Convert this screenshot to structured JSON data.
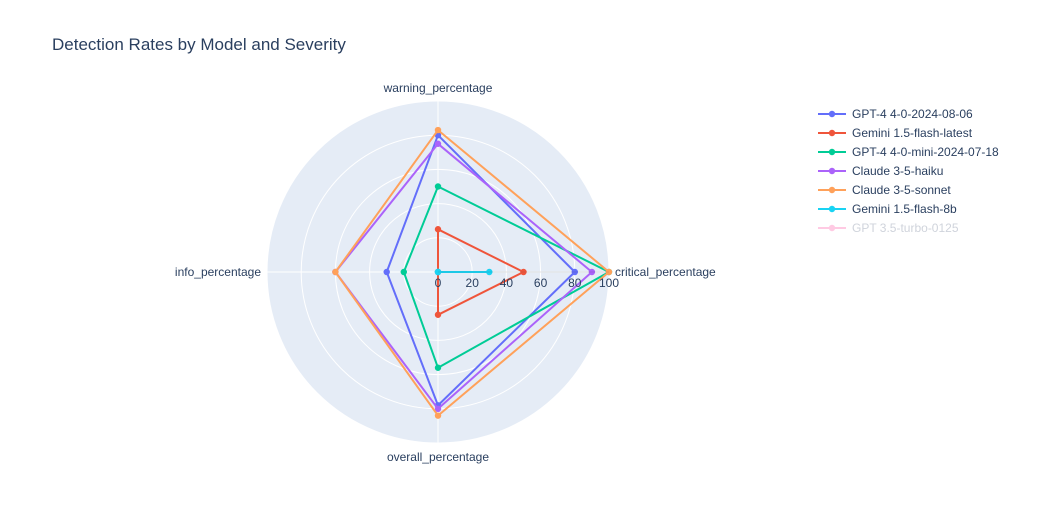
{
  "chart_data": {
    "type": "radar",
    "title": "Detection Rates by Model and Severity",
    "axes": [
      "critical_percentage",
      "warning_percentage",
      "info_percentage",
      "overall_percentage"
    ],
    "radial_range": [
      0,
      100
    ],
    "radial_ticks": [
      0,
      20,
      40,
      60,
      80,
      100
    ],
    "grid": true,
    "legend_placement": "right",
    "series": [
      {
        "name": "GPT-4 4-0-2024-08-06",
        "color": "#636efa",
        "values": [
          80,
          80,
          30,
          78
        ],
        "visible": true
      },
      {
        "name": "Gemini 1.5-flash-latest",
        "color": "#ef553b",
        "values": [
          50,
          25,
          0,
          25
        ],
        "visible": true
      },
      {
        "name": "GPT-4 4-0-mini-2024-07-18",
        "color": "#00cc96",
        "values": [
          100,
          50,
          20,
          56
        ],
        "visible": true
      },
      {
        "name": "Claude 3-5-haiku",
        "color": "#ab63fa",
        "values": [
          90,
          75,
          60,
          80
        ],
        "visible": true
      },
      {
        "name": "Claude 3-5-sonnet",
        "color": "#ffa15a",
        "values": [
          100,
          83,
          60,
          84
        ],
        "visible": true
      },
      {
        "name": "Gemini 1.5-flash-8b",
        "color": "#19d3f3",
        "values": [
          30,
          0,
          0,
          0
        ],
        "visible": true
      },
      {
        "name": "GPT 3.5-turbo-0125",
        "color": "#ff97c8",
        "values": [],
        "visible": false
      }
    ]
  }
}
